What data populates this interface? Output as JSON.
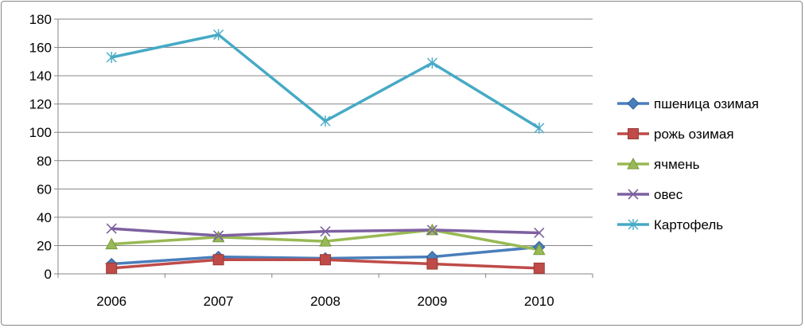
{
  "chart_data": {
    "type": "line",
    "categories": [
      "2006",
      "2007",
      "2008",
      "2009",
      "2010"
    ],
    "ylim": [
      0,
      180
    ],
    "yticks": [
      0,
      20,
      40,
      60,
      80,
      100,
      120,
      140,
      160,
      180
    ],
    "grid": true,
    "legend_position": "right",
    "series": [
      {
        "name": "пшеница озимая",
        "values": [
          7,
          12,
          11,
          12,
          19
        ],
        "color": "#4a7ebb",
        "marker": "diamond"
      },
      {
        "name": "рожь озимая",
        "values": [
          4,
          10,
          10,
          7,
          4
        ],
        "color": "#be4b48",
        "marker": "square"
      },
      {
        "name": "ячмень",
        "values": [
          21,
          26,
          23,
          31,
          17
        ],
        "color": "#98b954",
        "marker": "triangle"
      },
      {
        "name": "овес",
        "values": [
          32,
          27,
          30,
          31,
          29
        ],
        "color": "#7d60a0",
        "marker": "x"
      },
      {
        "name": "Картофель",
        "values": [
          153,
          169,
          108,
          149,
          103
        ],
        "color": "#46aac5",
        "marker": "star"
      }
    ]
  }
}
